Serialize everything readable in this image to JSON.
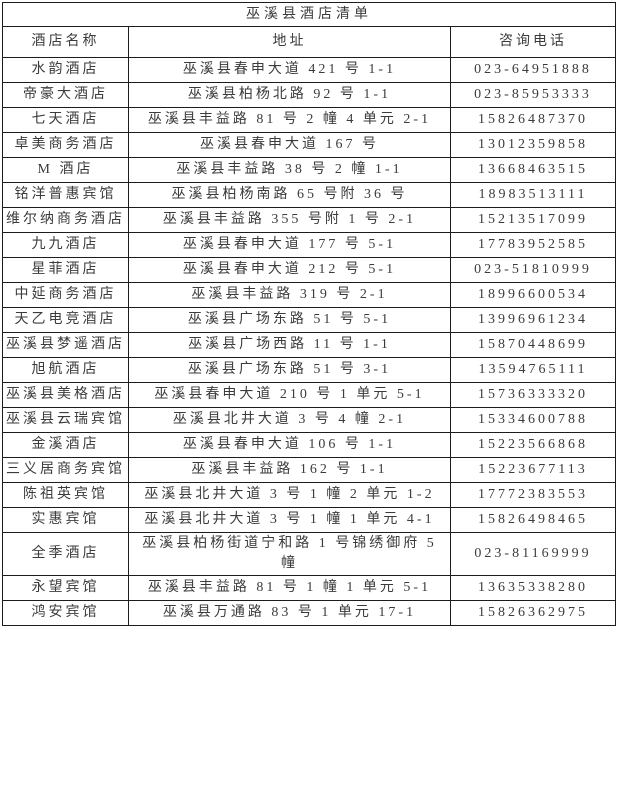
{
  "title": "巫溪县酒店清单",
  "columns": {
    "name": "酒店名称",
    "address": "地址",
    "phone": "咨询电话"
  },
  "rows": [
    {
      "name": "水韵酒店",
      "address": "巫溪县春申大道 421 号 1-1",
      "phone": "023-64951888"
    },
    {
      "name": "帝豪大酒店",
      "address": "巫溪县柏杨北路 92 号 1-1",
      "phone": "023-85953333"
    },
    {
      "name": "七天酒店",
      "address": "巫溪县丰益路 81 号 2 幢 4 单元 2-1",
      "phone": "15826487370"
    },
    {
      "name": "卓美商务酒店",
      "address": "巫溪县春申大道 167 号",
      "phone": "13012359858"
    },
    {
      "name": "M 酒店",
      "address": "巫溪县丰益路 38 号 2 幢 1-1",
      "phone": "13668463515"
    },
    {
      "name": "铭洋普惠宾馆",
      "address": "巫溪县柏杨南路 65 号附 36 号",
      "phone": "18983513111"
    },
    {
      "name": "维尔纳商务酒店",
      "address": "巫溪县丰益路 355 号附 1 号 2-1",
      "phone": "15213517099"
    },
    {
      "name": "九九酒店",
      "address": "巫溪县春申大道 177 号 5-1",
      "phone": "17783952585"
    },
    {
      "name": "星菲酒店",
      "address": "巫溪县春申大道 212 号 5-1",
      "phone": "023-51810999"
    },
    {
      "name": "中延商务酒店",
      "address": "巫溪县丰益路 319 号 2-1",
      "phone": "18996600534"
    },
    {
      "name": "天乙电竞酒店",
      "address": "巫溪县广场东路 51 号 5-1",
      "phone": "13996961234"
    },
    {
      "name": "巫溪县梦遥酒店",
      "address": "巫溪县广场西路 11 号 1-1",
      "phone": "15870448699"
    },
    {
      "name": "旭航酒店",
      "address": "巫溪县广场东路 51 号 3-1",
      "phone": "13594765111"
    },
    {
      "name": "巫溪县美格酒店",
      "address": "巫溪县春申大道 210 号 1 单元 5-1",
      "phone": "15736333320"
    },
    {
      "name": "巫溪县云瑞宾馆",
      "address": "巫溪县北井大道 3 号 4 幢 2-1",
      "phone": "15334600788"
    },
    {
      "name": "金溪酒店",
      "address": "巫溪县春申大道 106 号 1-1",
      "phone": "15223566868"
    },
    {
      "name": "三义居商务宾馆",
      "address": "巫溪县丰益路 162 号 1-1",
      "phone": "15223677113"
    },
    {
      "name": "陈祖英宾馆",
      "address": "巫溪县北井大道 3 号 1 幢 2 单元 1-2",
      "phone": "17772383553"
    },
    {
      "name": "实惠宾馆",
      "address": "巫溪县北井大道 3 号 1 幢 1 单元 4-1",
      "phone": "15826498465"
    },
    {
      "name": "全季酒店",
      "address": "巫溪县柏杨街道宁和路 1 号锦绣御府 5 幢",
      "phone": "023-81169999"
    },
    {
      "name": "永望宾馆",
      "address": "巫溪县丰益路 81 号 1 幢 1 单元 5-1",
      "phone": "13635338280"
    },
    {
      "name": "鸿安宾馆",
      "address": "巫溪县万通路 83 号 1 单元 17-1",
      "phone": "15826362975"
    }
  ]
}
